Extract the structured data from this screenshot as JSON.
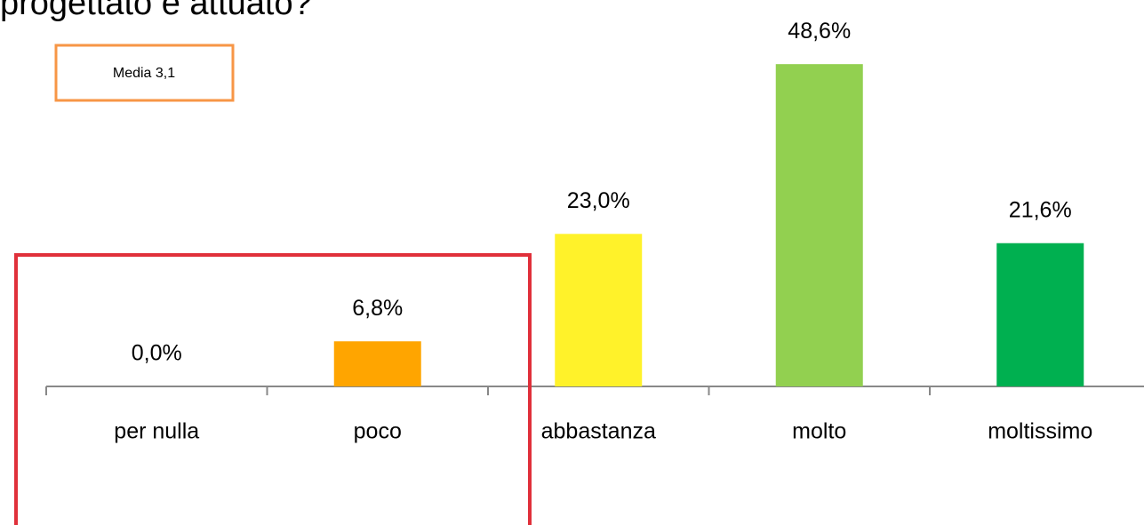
{
  "chart_data": {
    "type": "bar",
    "title": "progettato e attuato?",
    "annotation": "Media 3,1",
    "categories": [
      "per nulla",
      "poco",
      "abbastanza",
      "molto",
      "moltissimo"
    ],
    "values": [
      0.0,
      6.8,
      23.0,
      48.6,
      21.6
    ],
    "value_labels": [
      "0,0%",
      "6,8%",
      "23,0%",
      "48,6%",
      "21,6%"
    ],
    "colors": [
      "#ffa500",
      "#ffa500",
      "#fff22a",
      "#92d050",
      "#00b050"
    ],
    "ylim": [
      0,
      58
    ]
  }
}
